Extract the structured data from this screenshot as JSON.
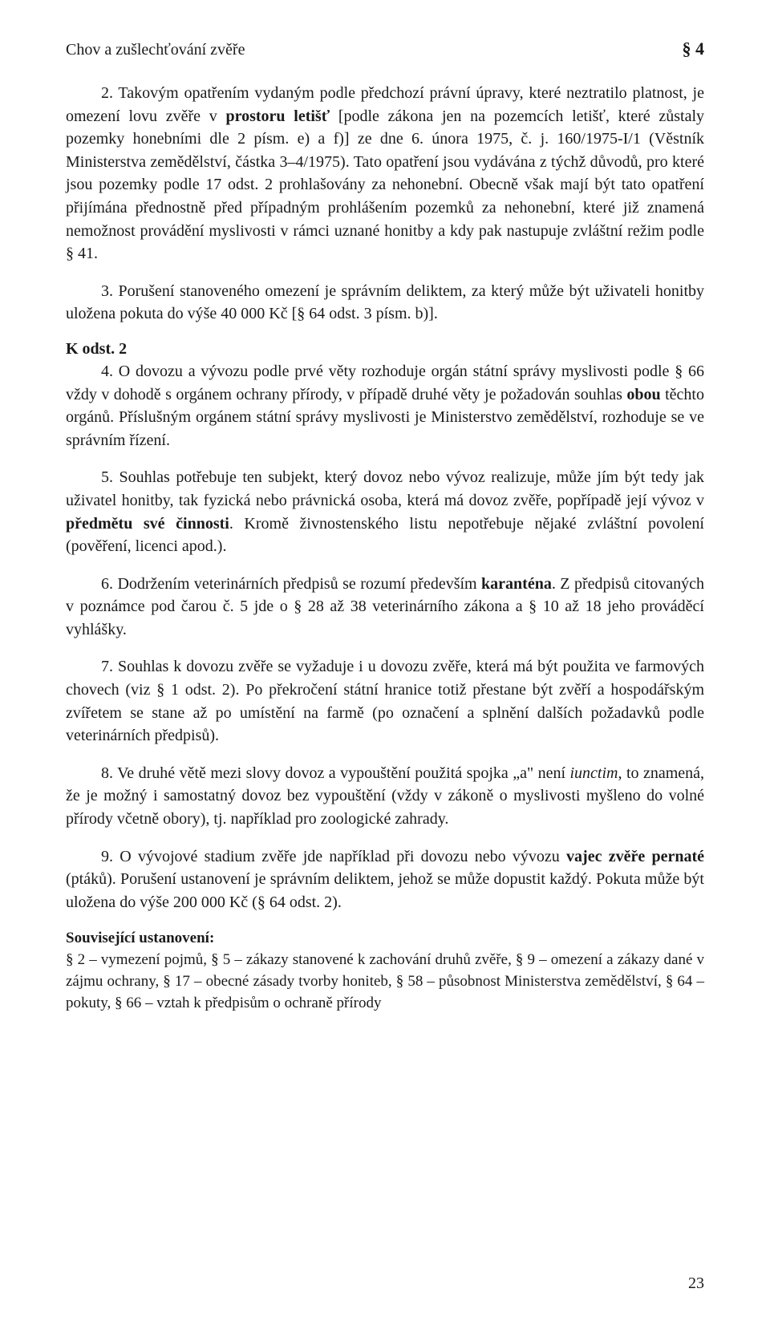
{
  "page": {
    "running_title": "Chov a zušlechťování zvěře",
    "section_symbol": "§ 4",
    "page_number": "23",
    "font_family": "Times New Roman",
    "body_fontsize_pt": 15,
    "line_height": 1.43,
    "text_color": "#1a1a1a",
    "background_color": "#ffffff"
  },
  "paragraphs": {
    "p1a": "2. Takovým opatřením vydaným podle předchozí právní úpravy, které neztratilo platnost, je omezení lovu zvěře v ",
    "p1_bold1": "prostoru letišť",
    "p1b": " [podle zákona jen na pozemcích letišť, které zůstaly pozemky honebními dle 2 písm. e) a f)] ze dne 6. února 1975, č. j. 160/1975-I/1 (Věstník Ministerstva zemědělství, částka 3–4/1975). Tato opatření jsou vydávána z týchž důvodů, pro které jsou pozemky podle 17 odst. 2 prohlašovány za nehonební. Obecně však mají být tato opatření přijímána přednostně před případným prohlášením pozemků za nehonební, které již znamená nemožnost provádění myslivosti v rámci uznané honitby a kdy pak nastupuje zvláštní režim podle § 41.",
    "p2": "3. Porušení stanoveného omezení je správním deliktem, za který může být uživateli honitby uložena pokuta do výše 40 000 Kč [§ 64 odst. 3 písm. b)].",
    "k_odst_2": "K odst. 2",
    "p3a": "4. O dovozu a vývozu podle prvé věty rozhoduje orgán státní správy myslivosti podle § 66 vždy v dohodě s orgánem ochrany přírody, v případě druhé věty je požadován souhlas ",
    "p3_bold1": "obou",
    "p3b": " těchto orgánů. Příslušným orgánem státní správy myslivosti je Ministerstvo zemědělství, rozhoduje se ve správním řízení.",
    "p4a": "5. Souhlas potřebuje ten subjekt, který dovoz nebo vývoz realizuje, může jím být tedy jak uživatel honitby, tak fyzická nebo právnická osoba, která má dovoz zvěře, popřípadě její vývoz v ",
    "p4_bold1": "předmětu své činnosti",
    "p4b": ". Kromě živnostenského listu nepotřebuje nějaké zvláštní povolení (pověření, licenci apod.).",
    "p5a": "6. Dodržením veterinárních předpisů se rozumí především ",
    "p5_bold1": "karanténa",
    "p5b": ". Z předpisů citovaných v poznámce pod čarou č. 5 jde o § 28 až 38 veterinárního zákona a § 10 až 18 jeho prováděcí vyhlášky.",
    "p6": "7. Souhlas k dovozu zvěře se vyžaduje i u dovozu zvěře, která má být použita ve farmových chovech (viz § 1 odst. 2). Po překročení státní hranice totiž přestane být zvěří a hospodářským zvířetem se stane až po umístění na farmě (po označení a splnění dalších požadavků podle veterinárních předpisů).",
    "p7a": "8. Ve druhé větě mezi slovy dovoz a vypouštění použitá spojka „a\" není ",
    "p7_it1": "iunctim",
    "p7b": ", to znamená, že je možný i samostatný dovoz bez vypouštění (vždy v zákoně o myslivosti myšleno do volné přírody včetně obory), tj. například pro zoologické zahrady.",
    "p8a": "9. O vývojové stadium zvěře jde například při dovozu nebo vývozu ",
    "p8_bold1": "vajec zvěře pernaté",
    "p8b": " (ptáků). Porušení ustanovení je správním deliktem, jehož se může dopustit každý. Pokuta může být uložena do výše 200 000 Kč (§ 64 odst. 2).",
    "related_heading": "Související ustanovení:",
    "related_body": "§ 2 – vymezení pojmů, § 5 – zákazy stanovené k zachování druhů zvěře, § 9 – omezení a zákazy dané v zájmu ochrany, § 17 – obecné zásady tvorby honiteb, § 58 – působnost Ministerstva zemědělství, § 64 – pokuty, § 66 – vztah k předpisům o ochraně přírody"
  }
}
